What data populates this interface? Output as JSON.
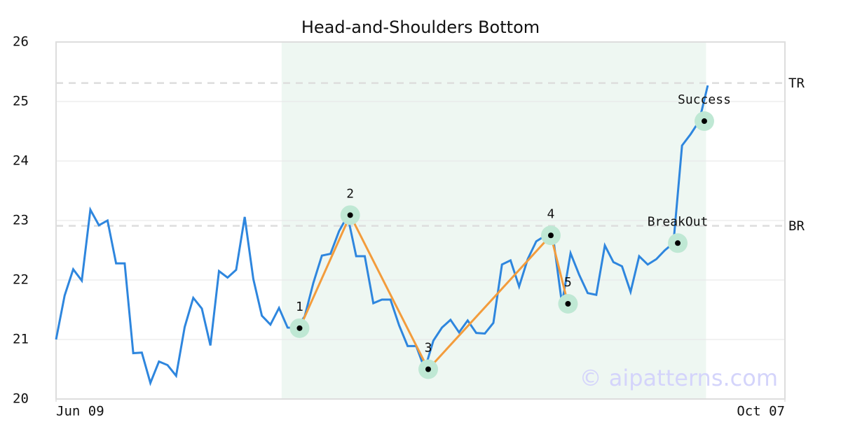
{
  "chart_data": {
    "type": "line",
    "title": "Head-and-Shoulders Bottom",
    "x": [
      0,
      1,
      2,
      3,
      4,
      5,
      6,
      7,
      8,
      9,
      10,
      11,
      12,
      13,
      14,
      15,
      16,
      17,
      18,
      19,
      20,
      21,
      22,
      23,
      24,
      25,
      26,
      27,
      28,
      29,
      30,
      31,
      32,
      33,
      34,
      35,
      36,
      37,
      38,
      39,
      40,
      41,
      42,
      43,
      44,
      45,
      46,
      47,
      48,
      49,
      50,
      51,
      52,
      53,
      54,
      55,
      56,
      57,
      58,
      59,
      60,
      61,
      62,
      63,
      64,
      65,
      66,
      67,
      68,
      69,
      70,
      71,
      72,
      73,
      74,
      75,
      76
    ],
    "series": [
      {
        "color": "#2e86de",
        "values": [
          21.0,
          21.74,
          22.18,
          21.99,
          23.18,
          22.92,
          23.0,
          22.28,
          22.28,
          20.77,
          20.78,
          20.27,
          20.63,
          20.57,
          20.39,
          21.21,
          21.7,
          21.52,
          20.9,
          22.15,
          22.04,
          22.17,
          23.06,
          22.02,
          21.4,
          21.25,
          21.53,
          21.2,
          21.19,
          21.39,
          21.95,
          22.41,
          22.44,
          22.82,
          23.08,
          22.4,
          22.4,
          21.61,
          21.67,
          21.67,
          21.24,
          20.89,
          20.89,
          20.5,
          20.98,
          21.2,
          21.33,
          21.12,
          21.32,
          21.11,
          21.1,
          21.28,
          22.26,
          22.33,
          21.89,
          22.35,
          22.65,
          22.74,
          22.68,
          21.6,
          22.45,
          22.09,
          21.78,
          21.75,
          22.58,
          22.3,
          22.23,
          21.8,
          22.4,
          22.26,
          22.35,
          22.5,
          22.62,
          24.26,
          24.45,
          24.67,
          25.27
        ]
      }
    ],
    "xlim": [
      0,
      85
    ],
    "xticks": [
      {
        "value": 0,
        "label": "Jun 09"
      },
      {
        "value": 85,
        "label": "Oct 07"
      }
    ],
    "ylim": [
      20,
      26
    ],
    "yticks": [
      20,
      21,
      22,
      23,
      24,
      25,
      26
    ],
    "grid": true,
    "highlight": [
      26.3,
      75.8
    ],
    "highlight_color": "#eef7f2",
    "levels": [
      {
        "label": "TR",
        "value": 25.31
      },
      {
        "label": "BR",
        "value": 22.91
      }
    ],
    "pattern": {
      "color": "#f39c3c",
      "x": [
        28.4,
        34.3,
        43.4,
        57.7,
        59.7
      ],
      "values": [
        21.19,
        23.09,
        20.5,
        22.75,
        21.6
      ],
      "labels": [
        "1",
        "2",
        "3",
        "4",
        "5"
      ]
    },
    "signals": {
      "x": [
        72.5,
        75.6
      ],
      "values": [
        22.62,
        24.67
      ],
      "labels": [
        "BreakOut",
        "Success"
      ]
    },
    "watermark": "© aipatterns.com"
  }
}
